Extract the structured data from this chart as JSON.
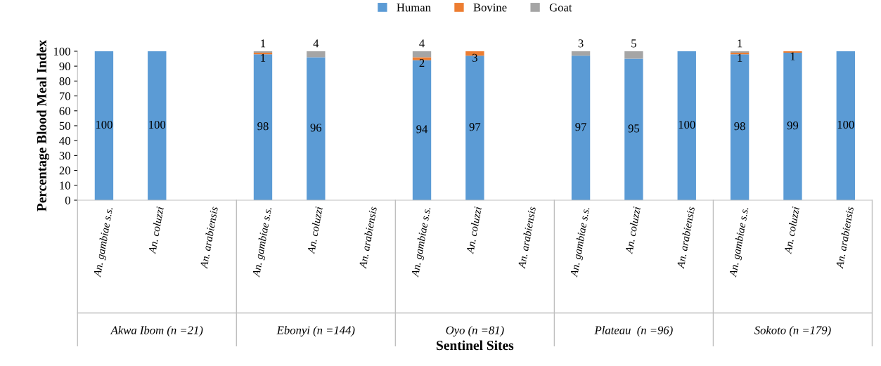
{
  "chart_data": {
    "type": "bar",
    "stacked": true,
    "xlabel": "Sentinel Sites",
    "ylabel": "Percentage Blood Meal Index",
    "categories": [
      "An. gambiae s.s.",
      "An. coluzzi",
      "An. arabiensis",
      "An. gambiae s.s.",
      "An. coluzzi",
      "An. arabiensis",
      "An. gambiae s.s.",
      "An. coluzzi",
      "An. arabiensis",
      "An. gambiae s.s.",
      "An. coluzzi",
      "An. arabiensis",
      "An. gambiae s.s.",
      "An. coluzzi",
      "An. arabiensis"
    ],
    "annotations": [
      "Akwa Ibom (n =21)",
      "Ebonyi (n =144)",
      "Oyo (n =81)",
      "Plateau  (n =96)",
      "Sokoto (n =179)"
    ],
    "series": [
      {
        "name": "Human",
        "color": "#5b9bd5",
        "values": [
          100,
          100,
          null,
          98,
          96,
          null,
          94,
          97,
          null,
          97,
          95,
          100,
          98,
          99,
          100
        ],
        "value_labels": [
          "100",
          "100",
          null,
          "98",
          "96",
          null,
          "94",
          "97",
          null,
          "97",
          "95",
          "100",
          "98",
          "99",
          "100"
        ]
      },
      {
        "name": "Bovine",
        "color": "#ed7d31",
        "values": [
          0,
          0,
          null,
          1,
          0,
          null,
          2,
          3,
          null,
          0,
          0,
          0,
          1,
          1,
          0
        ],
        "value_labels": [
          null,
          null,
          null,
          "1",
          null,
          null,
          "2",
          "3",
          null,
          null,
          null,
          null,
          "1",
          "1",
          null
        ]
      },
      {
        "name": "Goat",
        "color": "#a5a5a5",
        "values": [
          0,
          0,
          null,
          1,
          4,
          null,
          4,
          0,
          null,
          3,
          5,
          0,
          1,
          0,
          0
        ],
        "value_labels": [
          null,
          null,
          null,
          "1",
          "4",
          null,
          "4",
          null,
          null,
          "3",
          "5",
          null,
          "1",
          null,
          null
        ]
      }
    ],
    "ylim": [
      0,
      100
    ],
    "yticks": [
      0,
      10,
      20,
      30,
      40,
      50,
      60,
      70,
      80,
      90,
      100
    ],
    "grid": false,
    "legend": "top"
  }
}
